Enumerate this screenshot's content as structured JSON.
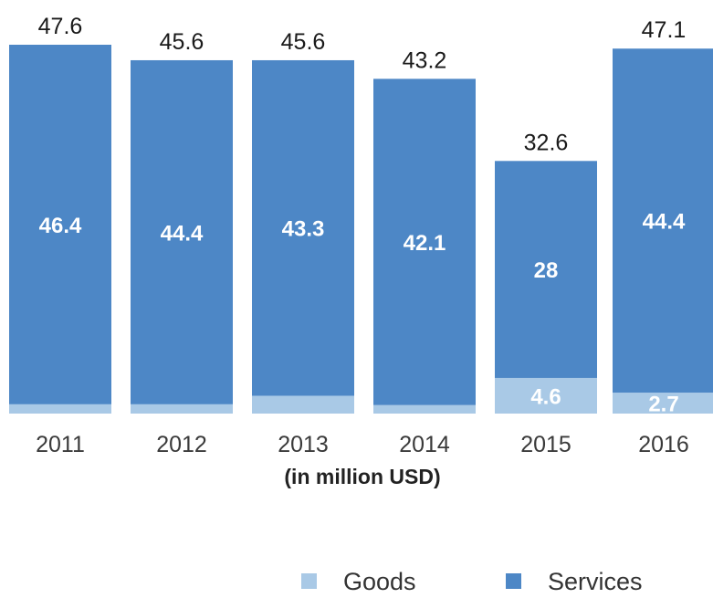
{
  "chart_data": {
    "type": "bar",
    "stacked": true,
    "categories": [
      "2011",
      "2012",
      "2013",
      "2014",
      "2015",
      "2016"
    ],
    "series": [
      {
        "name": "Goods",
        "values": [
          1.2,
          1.2,
          2.3,
          1.1,
          4.6,
          2.7
        ],
        "show_labels": [
          false,
          false,
          false,
          false,
          true,
          true
        ],
        "color": "#a9c9e6"
      },
      {
        "name": "Services",
        "values": [
          46.4,
          44.4,
          43.3,
          42.1,
          28,
          44.4
        ],
        "show_labels": [
          true,
          true,
          true,
          true,
          true,
          true
        ],
        "color": "#4d87c6"
      }
    ],
    "totals": [
      47.6,
      45.6,
      45.6,
      43.2,
      32.6,
      47.1
    ],
    "xlabel": "(in million USD)",
    "ylabel": "",
    "ylim": [
      0,
      47.6
    ],
    "grid": false,
    "legend_position": "bottom-right"
  }
}
